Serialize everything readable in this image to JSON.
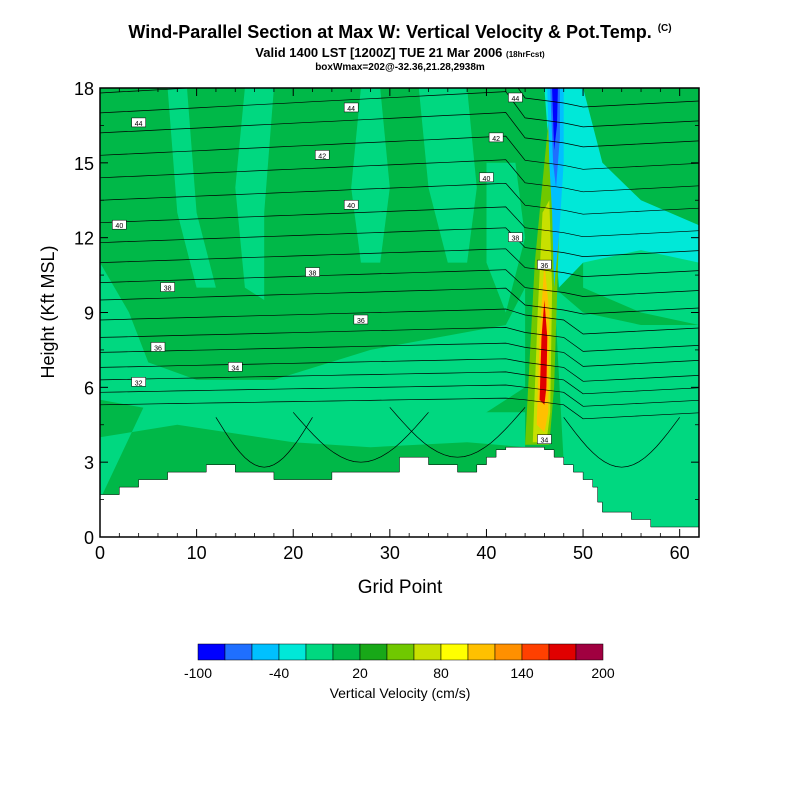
{
  "title": "Wind-Parallel Section at Max W: Vertical Velocity & Pot.Temp.",
  "title_mark": "(C)",
  "subtitle": "Valid 1400 LST [1200Z] TUE 21 Mar 2006",
  "subtitle_small": "(18hrFcst)",
  "subtitle2": "boxWmax=202@-32.36,21.28,2938m",
  "chart_data": {
    "type": "heatmap",
    "xlabel": "Grid Point",
    "ylabel": "Height (Kft MSL)",
    "xlim": [
      0,
      62
    ],
    "ylim": [
      0,
      18
    ],
    "xticks": [
      0,
      10,
      20,
      30,
      40,
      50,
      60
    ],
    "yticks": [
      0,
      3,
      6,
      9,
      12,
      15,
      18
    ],
    "colorbar": {
      "label": "Vertical Velocity (cm/s)",
      "tick_labels": [
        "-100",
        "-40",
        "20",
        "80",
        "140",
        "200"
      ],
      "colors": [
        "#0000ff",
        "#1f6fff",
        "#00c0ff",
        "#00e8d8",
        "#00d880",
        "#00b848",
        "#18a818",
        "#70c800",
        "#c8e000",
        "#ffff00",
        "#ffc000",
        "#ff9000",
        "#ff4000",
        "#e00000",
        "#a00040"
      ]
    },
    "background_class": "#00b848",
    "fields": [
      {
        "color": "#00d880",
        "label": "light-green band"
      },
      {
        "color": "#00e8d8",
        "label": "cyan band"
      },
      {
        "color": "#e00000",
        "label": "red core"
      }
    ],
    "terrain": [
      [
        0,
        1.7
      ],
      [
        2,
        1.7
      ],
      [
        2,
        2.0
      ],
      [
        4,
        2.0
      ],
      [
        4,
        2.3
      ],
      [
        7,
        2.3
      ],
      [
        7,
        2.6
      ],
      [
        11,
        2.6
      ],
      [
        11,
        2.9
      ],
      [
        14,
        2.9
      ],
      [
        14,
        2.6
      ],
      [
        18,
        2.6
      ],
      [
        18,
        2.3
      ],
      [
        24,
        2.3
      ],
      [
        24,
        2.6
      ],
      [
        31,
        2.6
      ],
      [
        31,
        3.2
      ],
      [
        34,
        3.2
      ],
      [
        34,
        2.9
      ],
      [
        37,
        2.9
      ],
      [
        37,
        2.6
      ],
      [
        39,
        2.6
      ],
      [
        39,
        2.9
      ],
      [
        40,
        2.9
      ],
      [
        40,
        3.2
      ],
      [
        41,
        3.2
      ],
      [
        41,
        3.5
      ],
      [
        42,
        3.5
      ],
      [
        42,
        3.6
      ],
      [
        46,
        3.6
      ],
      [
        46,
        3.5
      ],
      [
        47,
        3.5
      ],
      [
        47,
        3.2
      ],
      [
        48,
        3.2
      ],
      [
        48,
        2.9
      ],
      [
        49,
        2.9
      ],
      [
        49,
        2.6
      ],
      [
        50,
        2.6
      ],
      [
        50,
        2.3
      ],
      [
        51,
        2.3
      ],
      [
        51,
        2.0
      ],
      [
        51.5,
        2.0
      ],
      [
        51.5,
        1.4
      ],
      [
        52,
        1.4
      ],
      [
        52,
        1.0
      ],
      [
        55,
        1.0
      ],
      [
        55,
        0.7
      ],
      [
        57,
        0.7
      ],
      [
        57,
        0.4
      ],
      [
        62,
        0.4
      ]
    ],
    "isotherm_labels": [
      {
        "text": "44",
        "x": 4,
        "y": 16.6
      },
      {
        "text": "44",
        "x": 26,
        "y": 17.2
      },
      {
        "text": "44",
        "x": 43,
        "y": 17.6
      },
      {
        "text": "42",
        "x": 23,
        "y": 15.3
      },
      {
        "text": "42",
        "x": 41,
        "y": 16.0
      },
      {
        "text": "40",
        "x": 2,
        "y": 12.5
      },
      {
        "text": "40",
        "x": 26,
        "y": 13.3
      },
      {
        "text": "40",
        "x": 40,
        "y": 14.4
      },
      {
        "text": "38",
        "x": 7,
        "y": 10.0
      },
      {
        "text": "38",
        "x": 22,
        "y": 10.6
      },
      {
        "text": "38",
        "x": 43,
        "y": 12.0
      },
      {
        "text": "36",
        "x": 6,
        "y": 7.6
      },
      {
        "text": "36",
        "x": 27,
        "y": 8.7
      },
      {
        "text": "36",
        "x": 46,
        "y": 10.9
      },
      {
        "text": "34",
        "x": 14,
        "y": 6.8
      },
      {
        "text": "34",
        "x": 46,
        "y": 3.9
      },
      {
        "text": "32",
        "x": 4,
        "y": 6.2
      }
    ]
  }
}
